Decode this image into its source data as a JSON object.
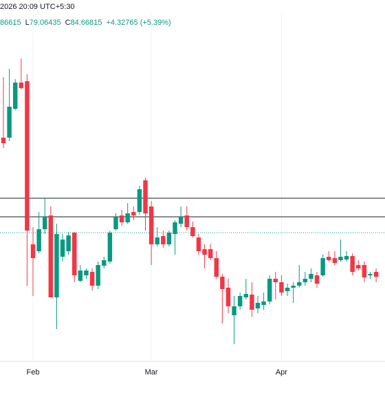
{
  "header": {
    "datetime": "2026 20:09 UTC+5:30",
    "open_fragment": 86615,
    "low_label": "L",
    "low": 79.06435,
    "close_label": "C",
    "close": 84.66815,
    "change": "+4.32765 (+5.39%)"
  },
  "chart_data": {
    "type": "candlestick",
    "x": [
      0,
      1,
      2,
      3,
      4,
      5,
      6,
      7,
      8,
      9,
      10,
      11,
      12,
      13,
      14,
      15,
      16,
      17,
      18,
      19,
      20,
      21,
      22,
      23,
      24,
      25,
      26,
      27,
      28,
      29,
      30,
      31,
      32,
      33,
      34,
      35,
      36,
      37,
      38,
      39,
      40,
      41,
      42,
      43,
      44,
      45,
      46,
      47,
      48,
      49,
      50,
      51,
      52,
      53,
      54,
      55,
      56,
      57,
      58,
      59,
      60,
      61,
      62,
      63
    ],
    "open": [
      98.5,
      98.5,
      102.7,
      106.5,
      106.7,
      83.0,
      82.0,
      85.2,
      87.2,
      75.3,
      81.2,
      82.0,
      84.7,
      77.7,
      78.5,
      79.0,
      77.0,
      79.9,
      80.5,
      85.2,
      87.2,
      86.2,
      87.7,
      87.7,
      92.3,
      88.5,
      83.0,
      84.2,
      83.0,
      84.5,
      86.0,
      87.2,
      85.5,
      84.0,
      82.3,
      82.3,
      81.0,
      78.3,
      76.7,
      72.7,
      74.0,
      75.3,
      75.7,
      73.7,
      74.2,
      74.7,
      78.0,
      77.5,
      76.2,
      76.7,
      77.0,
      77.5,
      78.0,
      78.5,
      78.5,
      81.2,
      81.0,
      80.7,
      80.8,
      81.3,
      80.0,
      80.0,
      78.5,
      79.0
    ],
    "high": [
      107.3,
      108.5,
      107.0,
      110.0,
      107.7,
      85.5,
      87.7,
      89.8,
      88.5,
      86.0,
      84.5,
      84.8,
      84.8,
      80.0,
      79.5,
      79.5,
      80.5,
      81.2,
      85.0,
      87.5,
      88.0,
      89.0,
      88.5,
      91.5,
      92.7,
      89.3,
      85.5,
      85.0,
      85.0,
      86.5,
      88.5,
      88.5,
      86.3,
      84.5,
      83.0,
      83.0,
      82.0,
      78.7,
      78.0,
      75.5,
      76.0,
      78.0,
      77.5,
      75.5,
      76.0,
      78.5,
      79.0,
      78.5,
      77.3,
      77.5,
      80.0,
      79.0,
      79.5,
      79.0,
      81.5,
      82.0,
      82.0,
      83.7,
      82.0,
      81.7,
      80.7,
      80.5,
      79.0,
      79.5
    ],
    "low": [
      97.0,
      98.0,
      102.5,
      105.5,
      77.0,
      75.5,
      81.7,
      84.5,
      75.3,
      70.7,
      80.5,
      81.5,
      77.5,
      77.5,
      78.0,
      76.3,
      76.5,
      79.5,
      80.2,
      85.0,
      85.7,
      86.0,
      86.5,
      87.3,
      85.0,
      80.0,
      82.7,
      82.5,
      82.7,
      81.5,
      85.5,
      85.0,
      84.0,
      81.5,
      79.5,
      80.7,
      78.0,
      71.5,
      73.0,
      68.5,
      73.5,
      75.0,
      72.5,
      73.0,
      73.5,
      74.3,
      75.0,
      75.5,
      75.5,
      74.5,
      76.7,
      77.0,
      77.5,
      76.7,
      78.3,
      80.5,
      80.0,
      80.5,
      80.5,
      78.5,
      79.2,
      77.5,
      78.0,
      77.5
    ],
    "close": [
      97.7,
      103.0,
      106.5,
      105.7,
      85.0,
      81.0,
      85.2,
      87.0,
      75.3,
      84.5,
      83.7,
      84.3,
      78.5,
      79.2,
      79.2,
      77.0,
      80.0,
      80.7,
      84.7,
      87.0,
      86.2,
      87.5,
      87.2,
      91.0,
      87.5,
      83.0,
      84.0,
      83.0,
      84.7,
      86.2,
      87.0,
      85.5,
      84.2,
      82.0,
      81.5,
      81.0,
      78.3,
      76.5,
      74.0,
      74.0,
      75.5,
      75.8,
      73.5,
      74.5,
      74.7,
      78.0,
      77.5,
      76.0,
      76.7,
      77.0,
      77.5,
      78.0,
      78.7,
      77.3,
      81.0,
      80.7,
      80.3,
      81.2,
      81.3,
      79.0,
      79.5,
      78.2,
      78.7,
      78.3
    ],
    "up_color": "#089981",
    "down_color": "#f23645",
    "xlim": [
      -0.58,
      64.5
    ],
    "ylim": [
      64.5,
      118.5
    ],
    "xticks": [
      {
        "value": 5,
        "label": "Feb"
      },
      {
        "value": 25,
        "label": "Mar"
      },
      {
        "value": 47,
        "label": "Apr"
      }
    ],
    "horizontal_lines": [
      89.7,
      87.0
    ],
    "price_line": 84.7
  }
}
